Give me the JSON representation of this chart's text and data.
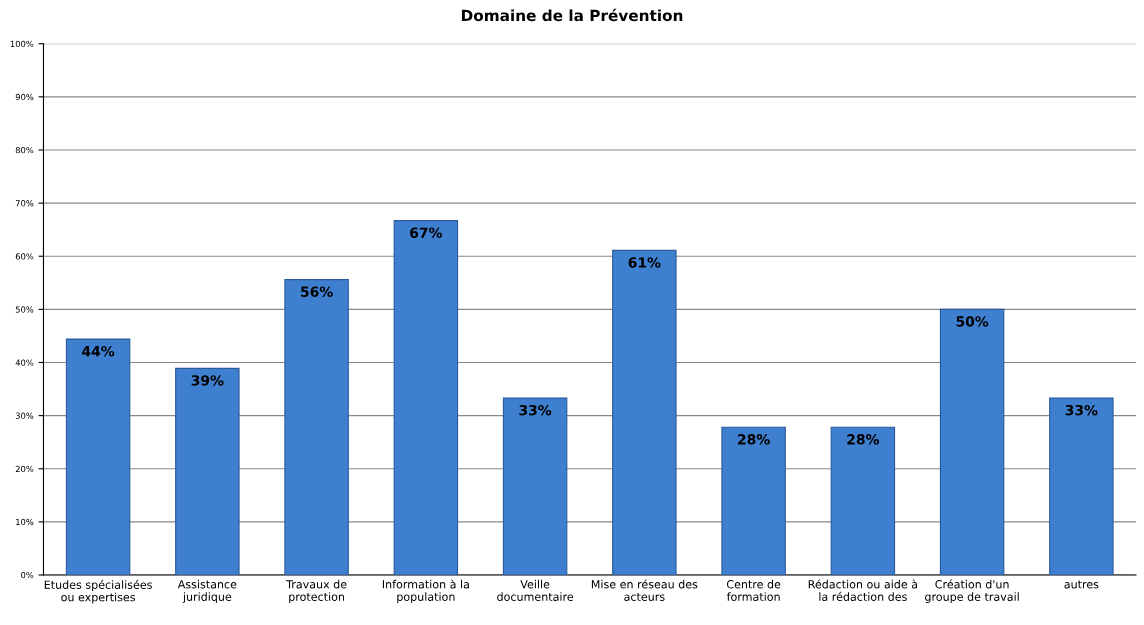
{
  "chart_data": {
    "type": "bar",
    "title": "Domaine de la Prévention",
    "categories": [
      "Etudes spécialisées\nou expertises",
      "Assistance\njuridique",
      "Travaux de\nprotection",
      "Information à la\npopulation",
      "Veille\ndocumentaire",
      "Mise en réseau des\nacteurs",
      "Centre de\nformation",
      "Rédaction ou aide à\nla rédaction des",
      "Création d'un\ngroupe de travail",
      "autres"
    ],
    "values": [
      44.4,
      38.9,
      55.6,
      66.7,
      33.3,
      61.1,
      27.8,
      27.8,
      50.0,
      33.3
    ],
    "value_labels": [
      "44%",
      "39%",
      "56%",
      "67%",
      "33%",
      "61%",
      "28%",
      "28%",
      "50%",
      "33%"
    ],
    "color": "#3f7fcf",
    "ylim": [
      0,
      100
    ],
    "yticks": [
      {
        "value": 0,
        "label": "0%"
      },
      {
        "value": 10,
        "label": "10%"
      },
      {
        "value": 20,
        "label": "20%"
      },
      {
        "value": 30,
        "label": "30%"
      },
      {
        "value": 40,
        "label": "40%"
      },
      {
        "value": 50,
        "label": "50%"
      },
      {
        "value": 60,
        "label": "60%"
      },
      {
        "value": 70,
        "label": "70%"
      },
      {
        "value": 80,
        "label": "80%"
      },
      {
        "value": 90,
        "label": "90%"
      },
      {
        "value": 100,
        "label": "100%"
      }
    ],
    "grid": "y"
  }
}
